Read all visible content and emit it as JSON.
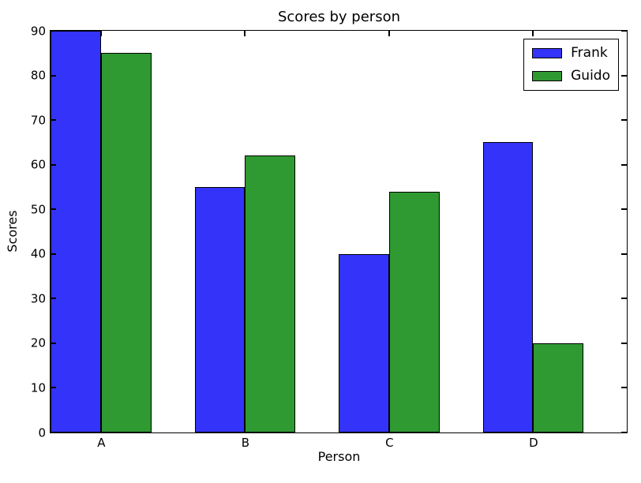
{
  "figure": {
    "background": "#ffffff",
    "axis_color": "#000000",
    "text_color": "#000000"
  },
  "chart_data": {
    "type": "bar",
    "title": "Scores by person",
    "xlabel": "Person",
    "ylabel": "Scores",
    "categories": [
      "A",
      "B",
      "C",
      "D"
    ],
    "series": [
      {
        "name": "Frank",
        "color": "#3333fa",
        "values": [
          90,
          55,
          40,
          65
        ]
      },
      {
        "name": "Guido",
        "color": "#2f9932",
        "values": [
          85,
          62,
          54,
          20
        ]
      }
    ],
    "ylim": [
      0,
      90
    ],
    "yticks": [
      0,
      10,
      20,
      30,
      40,
      50,
      60,
      70,
      80,
      90
    ],
    "bar_width_fraction": 0.35,
    "grid": false,
    "legend": {
      "position": "upper-right",
      "entries": [
        "Frank",
        "Guido"
      ]
    }
  }
}
